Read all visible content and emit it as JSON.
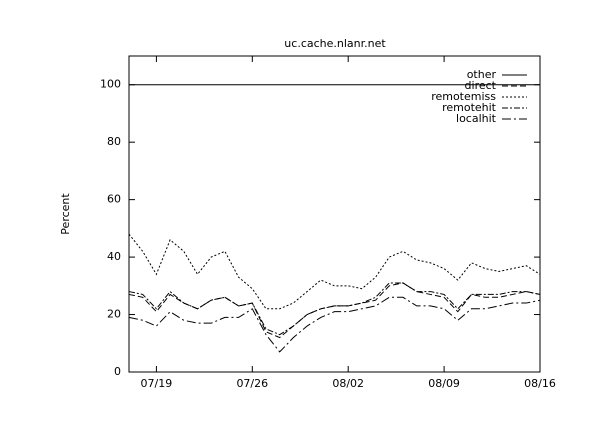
{
  "chart_data": {
    "type": "line",
    "title": "uc.cache.nlanr.net",
    "ylabel": "Percent",
    "x": [
      "07/17",
      "07/18",
      "07/19",
      "07/20",
      "07/21",
      "07/22",
      "07/23",
      "07/24",
      "07/25",
      "07/26",
      "07/27",
      "07/28",
      "07/29",
      "07/30",
      "07/31",
      "08/01",
      "08/02",
      "08/03",
      "08/04",
      "08/05",
      "08/06",
      "08/07",
      "08/08",
      "08/09",
      "08/10",
      "08/11",
      "08/12",
      "08/13",
      "08/14",
      "08/15",
      "08/16"
    ],
    "xlim": [
      "07/17",
      "08/16"
    ],
    "xticks": [
      "07/19",
      "07/26",
      "08/02",
      "08/09",
      "08/16"
    ],
    "ylim": [
      0,
      110
    ],
    "yticks": [
      0,
      20,
      40,
      60,
      80,
      100
    ],
    "legend": "upper right",
    "series": [
      {
        "name": "other",
        "color": "#000000",
        "dash": "none",
        "values": [
          100,
          100,
          100,
          100,
          100,
          100,
          100,
          100,
          100,
          100,
          100,
          100,
          100,
          100,
          100,
          100,
          100,
          100,
          100,
          100,
          100,
          100,
          100,
          100,
          100,
          100,
          100,
          100,
          100,
          100,
          100
        ]
      },
      {
        "name": "direct",
        "color": "#000000",
        "dash": "6,3",
        "values": [
          27,
          26,
          21,
          27,
          24,
          22,
          25,
          26,
          23,
          24,
          14,
          12,
          16,
          20,
          22,
          23,
          23,
          24,
          25,
          30,
          31,
          28,
          27,
          26,
          21,
          27,
          26,
          26,
          27,
          28,
          27
        ]
      },
      {
        "name": "remotemiss",
        "color": "#000000",
        "dash": "2,2",
        "values": [
          48,
          42,
          34,
          46,
          42,
          34,
          40,
          42,
          33,
          29,
          22,
          22,
          24,
          28,
          32,
          30,
          30,
          29,
          33,
          40,
          42,
          39,
          38,
          36,
          32,
          38,
          36,
          35,
          36,
          37,
          34
        ]
      },
      {
        "name": "remotehit",
        "color": "#000000",
        "dash": "6,2,2,2",
        "values": [
          28,
          27,
          22,
          28,
          24,
          22,
          25,
          26,
          23,
          24,
          15,
          13,
          16,
          20,
          22,
          23,
          23,
          24,
          26,
          31,
          31,
          28,
          28,
          27,
          22,
          27,
          27,
          27,
          28,
          28,
          27
        ]
      },
      {
        "name": "localhit",
        "color": "#000000",
        "dash": "9,3,2,3",
        "values": [
          19,
          18,
          16,
          21,
          18,
          17,
          17,
          19,
          19,
          22,
          13,
          7,
          12,
          16,
          19,
          21,
          21,
          22,
          23,
          26,
          26,
          23,
          23,
          22,
          18,
          22,
          22,
          23,
          24,
          24,
          25
        ]
      }
    ]
  }
}
